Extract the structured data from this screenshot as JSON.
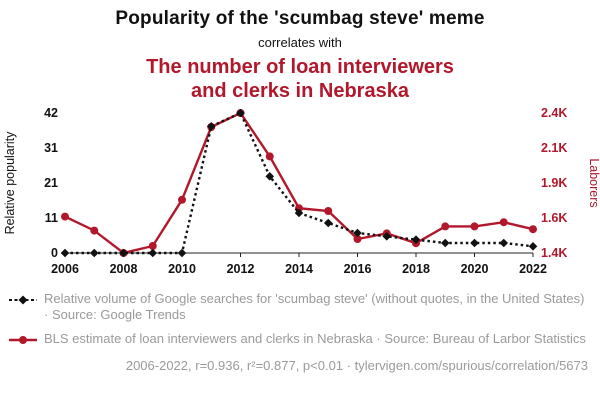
{
  "header": {
    "title": "Popularity of the 'scumbag steve' meme",
    "connector": "correlates with",
    "subtitle_line1": "The number of loan interviewers",
    "subtitle_line2": "and clerks in Nebraska"
  },
  "colors": {
    "accent_red": "#b2182b",
    "series_black": "#111111",
    "muted_text": "#9a9a9a"
  },
  "chart_data": {
    "type": "line",
    "x": [
      2006,
      2007,
      2008,
      2009,
      2010,
      2011,
      2012,
      2013,
      2014,
      2015,
      2016,
      2017,
      2018,
      2019,
      2020,
      2021,
      2022
    ],
    "x_ticks": [
      "2006",
      "2008",
      "2010",
      "2012",
      "2014",
      "2016",
      "2018",
      "2020",
      "2022"
    ],
    "series": [
      {
        "name": "Relative volume of Google searches for 'scumbag steve'",
        "axis": "left",
        "style": "dotted-diamond",
        "color_key": "series_black",
        "values": [
          0,
          0,
          0,
          0,
          0,
          38,
          42,
          23,
          12,
          9,
          6,
          5,
          4,
          3,
          3,
          3,
          2
        ]
      },
      {
        "name": "BLS estimate of loan interviewers and clerks in Nebraska",
        "axis": "right",
        "style": "solid-circle",
        "color_key": "accent_red",
        "values": [
          1660,
          1560,
          1400,
          1450,
          1780,
          2300,
          2400,
          2090,
          1720,
          1700,
          1500,
          1540,
          1470,
          1590,
          1590,
          1620,
          1570
        ]
      }
    ],
    "left_axis": {
      "label": "Relative popularity",
      "ticks": [
        "0",
        "11",
        "21",
        "31",
        "42"
      ],
      "range": [
        0,
        42
      ]
    },
    "right_axis": {
      "label": "Laborers",
      "ticks": [
        "1.4K",
        "1.6K",
        "1.9K",
        "2.1K",
        "2.4K"
      ],
      "range": [
        1400,
        2400
      ]
    },
    "grid": false,
    "legend_position": "below"
  },
  "legend": [
    {
      "text": "Relative volume of Google searches for 'scumbag steve' (without quotes, in the United States) · Source: Google Trends"
    },
    {
      "text": "BLS estimate of loan interviewers and clerks in Nebraska · Source: Bureau of Larbor Statistics"
    }
  ],
  "footer": {
    "text": "2006-2022, r=0.936, r²=0.877, p<0.01 · tylervigen.com/spurious/correlation/5673"
  }
}
